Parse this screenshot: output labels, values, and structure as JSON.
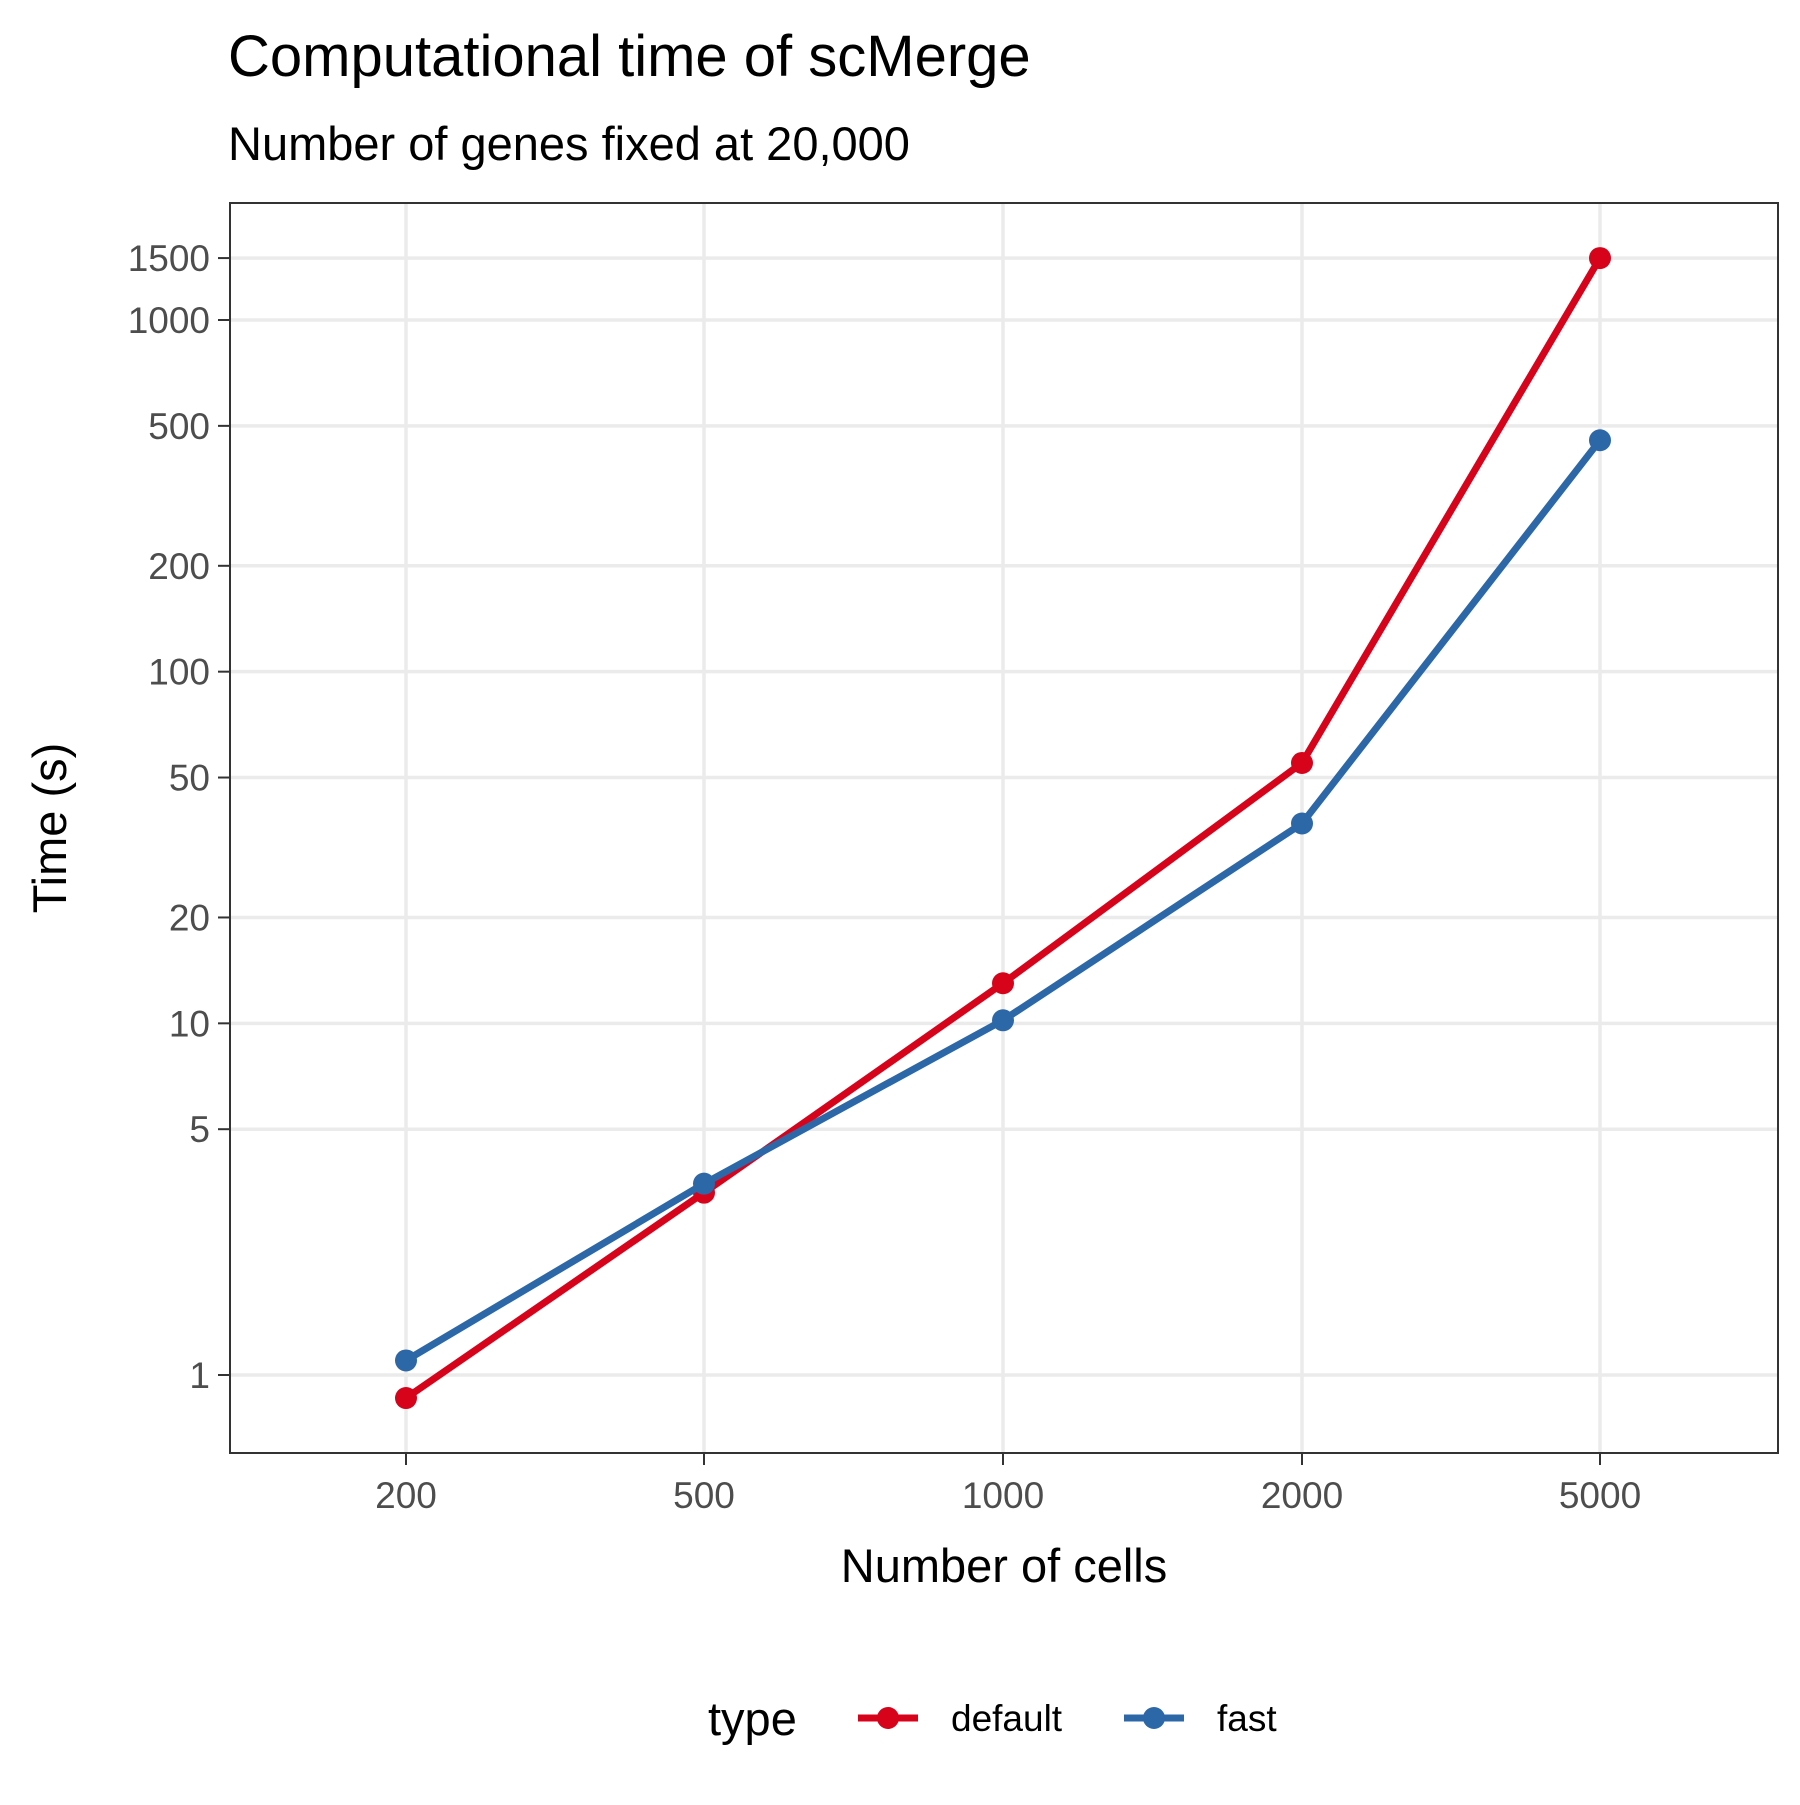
{
  "chart_data": {
    "type": "line",
    "title": "Computational time of scMerge",
    "subtitle": "Number of genes fixed at 20,000",
    "xlabel": "Number of cells",
    "ylabel": "Time (s)",
    "x_scale": "categorical",
    "y_scale": "log10",
    "categories": [
      "200",
      "500",
      "1000",
      "2000",
      "5000"
    ],
    "y_ticks": [
      1,
      5,
      10,
      20,
      50,
      100,
      200,
      500,
      1000,
      1500
    ],
    "y_tick_labels": [
      "1",
      "5",
      "10",
      "20",
      "50",
      "100",
      "200",
      "500",
      "1000",
      "1500"
    ],
    "ylim": [
      0.6,
      2200
    ],
    "grid": true,
    "legend": {
      "title": "type",
      "position": "bottom"
    },
    "series": [
      {
        "name": "default",
        "color": "#D7031B",
        "values": [
          0.86,
          3.3,
          13,
          55,
          1500
        ]
      },
      {
        "name": "fast",
        "color": "#2C67A8",
        "values": [
          1.1,
          3.5,
          10.2,
          37,
          455
        ]
      }
    ]
  }
}
